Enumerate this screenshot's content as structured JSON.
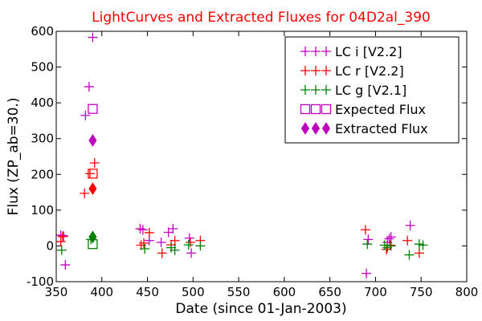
{
  "chart_data": {
    "type": "scatter",
    "title": "LightCurves and Extracted Fluxes for 04D2al_390",
    "xlabel": "Date (since 01-Jan-2003)",
    "ylabel": "Flux (ZP_ab=30.)",
    "xlim": [
      350,
      800
    ],
    "ylim": [
      -100,
      600
    ],
    "xticks": [
      350,
      400,
      450,
      500,
      550,
      600,
      650,
      700,
      750,
      800
    ],
    "yticks": [
      -100,
      0,
      100,
      200,
      300,
      400,
      500,
      600
    ],
    "xtick_labels": [
      "350",
      "400",
      "450",
      "500",
      "550",
      "600",
      "650",
      "700",
      "750",
      "800"
    ],
    "ytick_labels": [
      "-100",
      "0",
      "100",
      "200",
      "300",
      "400",
      "500",
      "600"
    ],
    "grid": false,
    "legend_position": "top-right",
    "series": [
      {
        "name": "LC i [V2.2]",
        "marker": "plus",
        "color": "#bf00bf",
        "x": [
          355,
          358,
          360,
          382,
          386,
          390,
          442,
          445,
          452,
          465,
          473,
          478,
          496,
          498,
          690,
          692,
          713,
          715,
          717,
          738
        ],
        "y": [
          30,
          28,
          -53,
          365,
          445,
          583,
          48,
          45,
          15,
          10,
          38,
          48,
          22,
          -20,
          -77,
          18,
          10,
          20,
          25,
          57
        ]
      },
      {
        "name": "LC r [V2.2]",
        "marker": "plus",
        "color": "#ff0000",
        "x": [
          355,
          357,
          381,
          387,
          392,
          443,
          446,
          452,
          466,
          476,
          480,
          497,
          508,
          689,
          712,
          716,
          735,
          748
        ],
        "y": [
          12,
          26,
          147,
          202,
          232,
          2,
          8,
          37,
          -20,
          3,
          15,
          10,
          15,
          45,
          -10,
          2,
          15,
          -20
        ]
      },
      {
        "name": "LC g [V2.1]",
        "marker": "plus",
        "color": "#008000",
        "x": [
          356,
          388,
          447,
          476,
          480,
          495,
          508,
          691,
          710,
          713,
          717,
          737,
          748,
          752
        ],
        "y": [
          -12,
          18,
          -8,
          -5,
          -12,
          3,
          0,
          5,
          2,
          -5,
          0,
          -25,
          5,
          2
        ]
      },
      {
        "name": "Expected Flux",
        "marker": "open-square",
        "color": "#bf00bf",
        "x": [
          390
        ],
        "y": [
          383
        ]
      },
      {
        "name": "Expected Flux r",
        "marker": "open-square",
        "color": "#ff0000",
        "x": [
          390
        ],
        "y": [
          202
        ]
      },
      {
        "name": "Expected Flux g",
        "marker": "open-square",
        "color": "#008000",
        "x": [
          390
        ],
        "y": [
          5
        ]
      },
      {
        "name": "Extracted Flux",
        "marker": "diamond",
        "color": "#bf00bf",
        "x": [
          390
        ],
        "y": [
          295
        ]
      },
      {
        "name": "Extracted Flux r",
        "marker": "diamond",
        "color": "#ff0000",
        "x": [
          390
        ],
        "y": [
          160
        ]
      },
      {
        "name": "Extracted Flux g",
        "marker": "diamond",
        "color": "#008000",
        "x": [
          390
        ],
        "y": [
          25
        ]
      }
    ],
    "legend": [
      {
        "label": "LC i [V2.2]",
        "marker": "plus",
        "color": "#bf00bf"
      },
      {
        "label": "LC r [V2.2]",
        "marker": "plus",
        "color": "#ff0000"
      },
      {
        "label": "LC g [V2.1]",
        "marker": "plus",
        "color": "#008000"
      },
      {
        "label": "Expected Flux",
        "marker": "open-square",
        "color": "#bf00bf"
      },
      {
        "label": "Extracted Flux",
        "marker": "diamond",
        "color": "#bf00bf"
      }
    ],
    "title_color": "#ff0000"
  }
}
